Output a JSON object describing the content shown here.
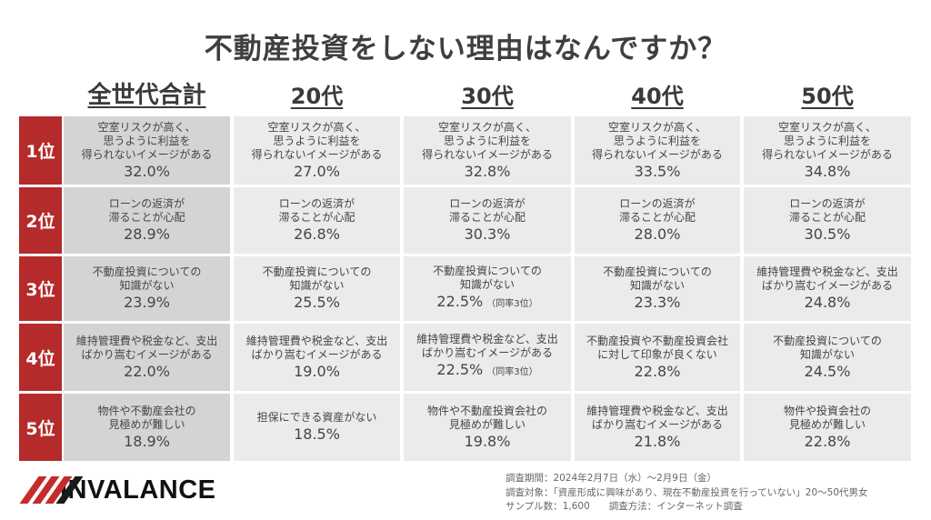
{
  "title": "不動産投資をしない理由はなんですか？",
  "columns": [
    {
      "label": "全世代合計"
    },
    {
      "label": "20代"
    },
    {
      "label": "30代"
    },
    {
      "label": "40代"
    },
    {
      "label": "50代"
    }
  ],
  "ranks": [
    {
      "label": "1位"
    },
    {
      "label": "2位"
    },
    {
      "label": "3位"
    },
    {
      "label": "4位"
    },
    {
      "label": "5位"
    }
  ],
  "table": [
    [
      {
        "reason": "空室リスクが高く、\n思うように利益を\n得られないイメージがある",
        "pct": "32.0%",
        "note": ""
      },
      {
        "reason": "空室リスクが高く、\n思うように利益を\n得られないイメージがある",
        "pct": "27.0%",
        "note": ""
      },
      {
        "reason": "空室リスクが高く、\n思うように利益を\n得られないイメージがある",
        "pct": "32.8%",
        "note": ""
      },
      {
        "reason": "空室リスクが高く、\n思うように利益を\n得られないイメージがある",
        "pct": "33.5%",
        "note": ""
      },
      {
        "reason": "空室リスクが高く、\n思うように利益を\n得られないイメージがある",
        "pct": "34.8%",
        "note": ""
      }
    ],
    [
      {
        "reason": "ローンの返済が\n滞ることが心配",
        "pct": "28.9%",
        "note": ""
      },
      {
        "reason": "ローンの返済が\n滞ることが心配",
        "pct": "26.8%",
        "note": ""
      },
      {
        "reason": "ローンの返済が\n滞ることが心配",
        "pct": "30.3%",
        "note": ""
      },
      {
        "reason": "ローンの返済が\n滞ることが心配",
        "pct": "28.0%",
        "note": ""
      },
      {
        "reason": "ローンの返済が\n滞ることが心配",
        "pct": "30.5%",
        "note": ""
      }
    ],
    [
      {
        "reason": "不動産投資についての\n知識がない",
        "pct": "23.9%",
        "note": ""
      },
      {
        "reason": "不動産投資についての\n知識がない",
        "pct": "25.5%",
        "note": ""
      },
      {
        "reason": "不動産投資についての\n知識がない",
        "pct": "22.5%",
        "note": "（同率3位）"
      },
      {
        "reason": "不動産投資についての\n知識がない",
        "pct": "23.3%",
        "note": ""
      },
      {
        "reason": "維持管理費や税金など、支出\nばかり嵩むイメージがある",
        "pct": "24.8%",
        "note": ""
      }
    ],
    [
      {
        "reason": "維持管理費や税金など、支出\nばかり嵩むイメージがある",
        "pct": "22.0%",
        "note": ""
      },
      {
        "reason": "維持管理費や税金など、支出\nばかり嵩むイメージがある",
        "pct": "19.0%",
        "note": ""
      },
      {
        "reason": "維持管理費や税金など、支出\nばかり嵩むイメージがある",
        "pct": "22.5%",
        "note": "（同率3位）"
      },
      {
        "reason": "不動産投資や不動産投資会社\nに対して印象が良くない",
        "pct": "22.8%",
        "note": ""
      },
      {
        "reason": "不動産投資についての\n知識がない",
        "pct": "24.5%",
        "note": ""
      }
    ],
    [
      {
        "reason": "物件や不動産会社の\n見極めが難しい",
        "pct": "18.9%",
        "note": ""
      },
      {
        "reason": "担保にできる資産がない",
        "pct": "18.5%",
        "note": ""
      },
      {
        "reason": "物件や不動産投資会社の\n見極めが難しい",
        "pct": "19.8%",
        "note": ""
      },
      {
        "reason": "維持管理費や税金など、支出\nばかり嵩むイメージがある",
        "pct": "21.8%",
        "note": ""
      },
      {
        "reason": "物件や投資会社の\n見極めが難しい",
        "pct": "22.8%",
        "note": ""
      }
    ]
  ],
  "logo": {
    "text": "INVALANCE"
  },
  "survey": {
    "period": "調査期間：2024年2月7日（水）～2月9日（金）",
    "target": "調査対象：「資産形成に興味があり、現在不動産投資を行っていない」20～50代男女",
    "sample": "サンプル数：1,600　　調査方法：インターネット調査"
  },
  "colors": {
    "rank_bg": "#b52a2a",
    "total_cell_bg": "#d4d4d4",
    "cell_bg": "#ebebeb",
    "text": "#454545"
  },
  "chart_data": {
    "type": "table",
    "title": "不動産投資をしない理由はなんですか？",
    "columns": [
      "全世代合計",
      "20代",
      "30代",
      "40代",
      "50代"
    ],
    "rows": [
      "1位",
      "2位",
      "3位",
      "4位",
      "5位"
    ],
    "series": [
      {
        "name": "全世代合計",
        "reasons": [
          "空室リスクが高く、思うように利益を得られないイメージがある",
          "ローンの返済が滞ることが心配",
          "不動産投資についての知識がない",
          "維持管理費や税金など、支出ばかり嵩むイメージがある",
          "物件や不動産会社の見極めが難しい"
        ],
        "values": [
          32.0,
          28.9,
          23.9,
          22.0,
          18.9
        ]
      },
      {
        "name": "20代",
        "reasons": [
          "空室リスクが高く、思うように利益を得られないイメージがある",
          "ローンの返済が滞ることが心配",
          "不動産投資についての知識がない",
          "維持管理費や税金など、支出ばかり嵩むイメージがある",
          "担保にできる資産がない"
        ],
        "values": [
          27.0,
          26.8,
          25.5,
          19.0,
          18.5
        ]
      },
      {
        "name": "30代",
        "reasons": [
          "空室リスクが高く、思うように利益を得られないイメージがある",
          "ローンの返済が滞ることが心配",
          "不動産投資についての知識がない（同率3位）",
          "維持管理費や税金など、支出ばかり嵩むイメージがある（同率3位）",
          "物件や不動産投資会社の見極めが難しい"
        ],
        "values": [
          32.8,
          30.3,
          22.5,
          22.5,
          19.8
        ]
      },
      {
        "name": "40代",
        "reasons": [
          "空室リスクが高く、思うように利益を得られないイメージがある",
          "ローンの返済が滞ることが心配",
          "不動産投資についての知識がない",
          "不動産投資や不動産投資会社に対して印象が良くない",
          "維持管理費や税金など、支出ばかり嵩むイメージがある"
        ],
        "values": [
          33.5,
          28.0,
          23.3,
          22.8,
          21.8
        ]
      },
      {
        "name": "50代",
        "reasons": [
          "空室リスクが高く、思うように利益を得られないイメージがある",
          "ローンの返済が滞ることが心配",
          "維持管理費や税金など、支出ばかり嵩むイメージがある",
          "不動産投資についての知識がない",
          "物件や投資会社の見極めが難しい"
        ],
        "values": [
          34.8,
          30.5,
          24.8,
          24.5,
          22.8
        ]
      }
    ],
    "unit": "%"
  }
}
